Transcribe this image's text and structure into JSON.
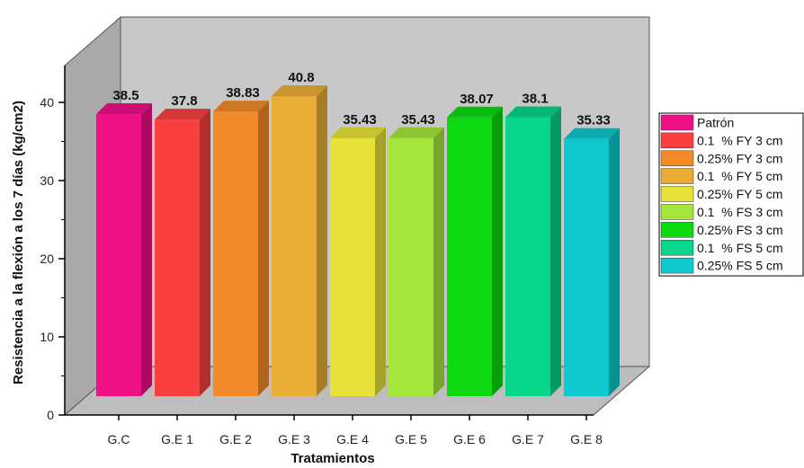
{
  "chart_data": {
    "type": "bar",
    "style": "3d",
    "xlabel": "Tratamientos",
    "ylabel": "Resistencia a la flexión a los 7 días (kg/cm2)",
    "ylim": [
      0,
      45
    ],
    "yticks": [
      "0",
      "10",
      "20",
      "30",
      "40"
    ],
    "grid": false,
    "legend_position": "right",
    "categories": [
      "G.C",
      "G.E 1",
      "G.E 2",
      "G.E 3",
      "G.E 4",
      "G.E 5",
      "G.E 6",
      "G.E 7",
      "G.E 8"
    ],
    "values": [
      38.5,
      37.8,
      38.83,
      40.8,
      35.43,
      35.43,
      38.07,
      38.1,
      35.33
    ],
    "value_labels": [
      "38.5",
      "37.8",
      "38.83",
      "40.8",
      "35.43",
      "35.43",
      "38.07",
      "38.1",
      "35.33"
    ],
    "legend": [
      "Patrón",
      "0.1  % FY 3 cm",
      "0.25% FY 3 cm",
      "0.1  % FY 5 cm",
      "0.25% FY 5 cm",
      "0.1  % FS 3 cm",
      "0.25% FS 3 cm",
      "0.1  % FS 5 cm",
      "0.25% FS 5 cm"
    ],
    "colors": [
      "#ef0f87",
      "#f9403f",
      "#f28a2a",
      "#e9ad35",
      "#e6e238",
      "#a4e63b",
      "#0dd912",
      "#07d68a",
      "#0dc8cc"
    ],
    "wall_color": "#c8c8c8"
  }
}
